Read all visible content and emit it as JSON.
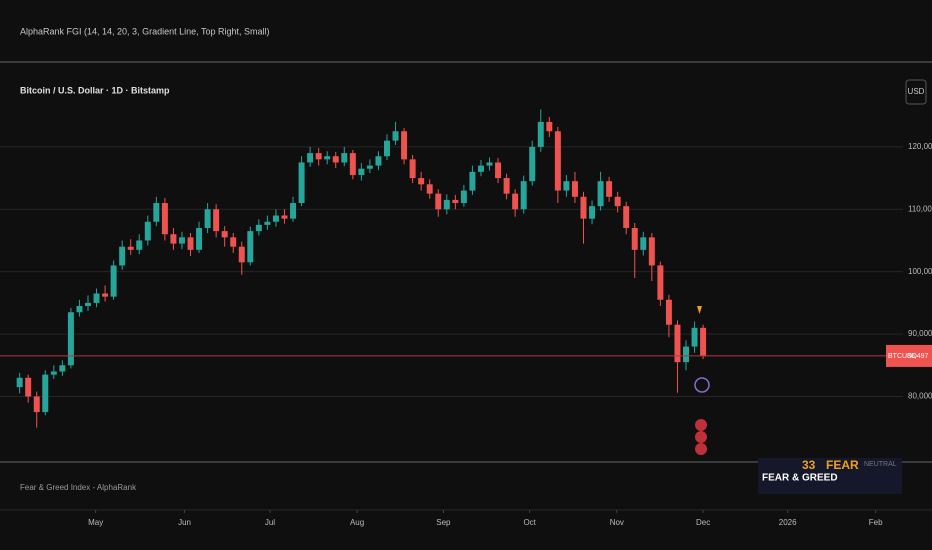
{
  "header": {
    "indicator": "AlphaRank FGI (14, 14, 20, 3, Gradient Line, Top Right, Small)",
    "currency": "USD"
  },
  "pane": {
    "label": "Fear & Greed Index - AlphaRank",
    "badge_title": "FEAR & GREED",
    "badge_value": "33",
    "badge_state": "FEAR",
    "badge_note": "NEUTRAL"
  },
  "price_tag": {
    "symbol": "BTCUSD",
    "label": "86,497"
  },
  "chart_data": {
    "type": "candlestick",
    "title": "Bitcoin / U.S. Dollar · 1D · Bitstamp",
    "up_color": "#26a69a",
    "down_color": "#ef5350",
    "grid": true,
    "open": [
      81500,
      83000,
      80000,
      77500,
      83500,
      84000,
      85000,
      93500,
      94500,
      95000,
      96500,
      96000,
      101000,
      104000,
      103500,
      105000,
      108000,
      111000,
      106000,
      104500,
      105500,
      103500,
      107000,
      110000,
      106500,
      105500,
      104000,
      101500,
      106500,
      107500,
      108000,
      109000,
      108500,
      111000,
      117500,
      119000,
      118000,
      118500,
      117500,
      119000,
      115500,
      116500,
      117000,
      118500,
      121000,
      122500,
      118000,
      115000,
      114000,
      112500,
      110000,
      111500,
      111000,
      113000,
      116000,
      117000,
      117500,
      115000,
      112500,
      110000,
      114500,
      120000,
      124000,
      122500,
      113000,
      114500,
      112000,
      108500,
      110500,
      114500,
      112000,
      110500,
      107000,
      103500,
      105500,
      101000,
      95500,
      91500,
      85500,
      88000,
      91000
    ],
    "high": [
      83800,
      83500,
      80800,
      84200,
      85000,
      85800,
      94200,
      95500,
      96200,
      97300,
      97800,
      101800,
      105000,
      105200,
      106000,
      109000,
      112000,
      111800,
      107000,
      106400,
      106200,
      108000,
      111000,
      110800,
      107300,
      106200,
      104800,
      107200,
      108400,
      109000,
      110000,
      110000,
      112000,
      118500,
      120000,
      119800,
      119300,
      119200,
      120000,
      119500,
      117400,
      118000,
      119300,
      122000,
      124000,
      123000,
      118700,
      116000,
      114800,
      113200,
      112400,
      112300,
      113900,
      117000,
      117900,
      118300,
      118200,
      115700,
      113200,
      115400,
      121000,
      126000,
      124800,
      123200,
      115500,
      116000,
      112800,
      111400,
      116000,
      115200,
      112800,
      111200,
      107800,
      106400,
      106200,
      101600,
      96300,
      92200,
      89000,
      92000,
      91500
    ],
    "low": [
      80500,
      79000,
      75000,
      77000,
      82800,
      83300,
      84500,
      92800,
      93700,
      94300,
      95200,
      95500,
      100300,
      102700,
      102800,
      104200,
      107300,
      105000,
      103500,
      103600,
      102500,
      103000,
      106200,
      105500,
      104000,
      103000,
      99500,
      101000,
      105800,
      106700,
      107200,
      107700,
      108000,
      110500,
      116800,
      117000,
      117200,
      116600,
      116900,
      114800,
      114600,
      115800,
      116300,
      117900,
      120300,
      117200,
      114200,
      113000,
      111700,
      108800,
      109200,
      110000,
      110400,
      112300,
      115300,
      116200,
      114200,
      111600,
      108800,
      109300,
      113800,
      119200,
      121600,
      111000,
      112000,
      111000,
      104500,
      107600,
      109800,
      111200,
      109500,
      106000,
      99000,
      102600,
      98500,
      94500,
      89500,
      80600,
      84200,
      87000,
      86000
    ],
    "close": [
      83000,
      80000,
      77500,
      83500,
      84000,
      85000,
      93500,
      94500,
      95000,
      96500,
      96000,
      101000,
      104000,
      103500,
      105000,
      108000,
      111000,
      106000,
      104500,
      105500,
      103500,
      107000,
      110000,
      106500,
      105500,
      104000,
      101500,
      106500,
      107500,
      108000,
      109000,
      108500,
      111000,
      117500,
      119000,
      118000,
      118500,
      117500,
      119000,
      115500,
      116500,
      117000,
      118500,
      121000,
      122500,
      118000,
      115000,
      114000,
      112500,
      110000,
      111500,
      111000,
      113000,
      116000,
      117000,
      117500,
      115000,
      112500,
      110000,
      114500,
      120000,
      124000,
      122500,
      113000,
      114500,
      112000,
      108500,
      110500,
      114500,
      112000,
      110500,
      107000,
      103500,
      105500,
      101000,
      95500,
      91500,
      85500,
      88000,
      91000,
      86497
    ],
    "xlim": [
      -2.3,
      103.4
    ],
    "xticks": [
      {
        "value": 8.9,
        "label": "May"
      },
      {
        "value": 19.3,
        "label": "Jun"
      },
      {
        "value": 29.3,
        "label": "Jul"
      },
      {
        "value": 39.5,
        "label": "Aug"
      },
      {
        "value": 49.6,
        "label": "Sep"
      },
      {
        "value": 59.7,
        "label": "Oct"
      },
      {
        "value": 69.9,
        "label": "Nov"
      },
      {
        "value": 80,
        "label": "Dec"
      },
      {
        "value": 89.9,
        "label": "2026"
      },
      {
        "value": 100.2,
        "label": "Feb"
      }
    ],
    "ylim": [
      69500,
      133600
    ],
    "yticks": [
      {
        "value": 80000,
        "label": "80,000"
      },
      {
        "value": 90000,
        "label": "90,000"
      },
      {
        "value": 100000,
        "label": "100,000"
      },
      {
        "value": 110000,
        "label": "110,000"
      },
      {
        "value": 120000,
        "label": "120,000"
      }
    ]
  }
}
